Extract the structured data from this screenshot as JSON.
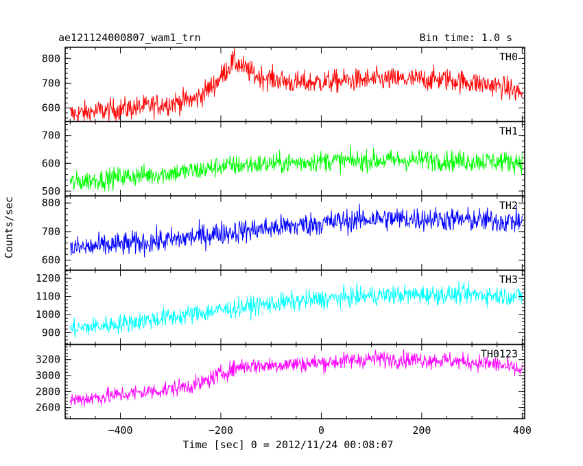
{
  "header": {
    "title": "ae121124000807_wam1_trn",
    "bin_time": "Bin time: 1.0 s"
  },
  "chart_data": {
    "type": "line",
    "xlabel": "Time [sec] 0 = 2012/11/24 00:08:07",
    "ylabel": "Counts/sec",
    "xlim": [
      -510,
      405
    ],
    "x_ticks": [
      -400,
      -200,
      0,
      200,
      400
    ],
    "x_tick_labels": [
      "−400",
      "−200",
      "0",
      "200",
      "400"
    ],
    "x_range": [
      -500,
      400
    ],
    "panels": [
      {
        "name": "TH0",
        "color": "#ff0000",
        "ylim": [
          545,
          845
        ],
        "y_ticks": [
          600,
          700,
          800
        ],
        "y_tick_labels": [
          "600",
          "700",
          "800"
        ],
        "trend": [
          [
            -500,
            575
          ],
          [
            -350,
            605
          ],
          [
            -250,
            635
          ],
          [
            -210,
            700
          ],
          [
            -175,
            790
          ],
          [
            -130,
            730
          ],
          [
            -50,
            700
          ],
          [
            0,
            705
          ],
          [
            100,
            715
          ],
          [
            250,
            715
          ],
          [
            350,
            690
          ],
          [
            400,
            660
          ]
        ],
        "noise": 42
      },
      {
        "name": "TH1",
        "color": "#00ff00",
        "ylim": [
          483,
          750
        ],
        "y_ticks": [
          500,
          600,
          700
        ],
        "y_tick_labels": [
          "500",
          "600",
          "700"
        ],
        "trend": [
          [
            -500,
            530
          ],
          [
            -400,
            550
          ],
          [
            -300,
            565
          ],
          [
            -240,
            575
          ],
          [
            -200,
            590
          ],
          [
            -100,
            598
          ],
          [
            0,
            608
          ],
          [
            100,
            610
          ],
          [
            200,
            612
          ],
          [
            300,
            608
          ],
          [
            400,
            605
          ]
        ],
        "noise": 34
      },
      {
        "name": "TH2",
        "color": "#0000ff",
        "ylim": [
          565,
          825
        ],
        "y_ticks": [
          600,
          700,
          800
        ],
        "y_tick_labels": [
          "600",
          "700",
          "800"
        ],
        "trend": [
          [
            -500,
            640
          ],
          [
            -400,
            655
          ],
          [
            -300,
            670
          ],
          [
            -200,
            695
          ],
          [
            -100,
            712
          ],
          [
            0,
            730
          ],
          [
            100,
            745
          ],
          [
            200,
            745
          ],
          [
            300,
            740
          ],
          [
            400,
            735
          ]
        ],
        "noise": 38
      },
      {
        "name": "TH3",
        "color": "#00ffff",
        "ylim": [
          835,
          1245
        ],
        "y_ticks": [
          900,
          1000,
          1100,
          1200
        ],
        "y_tick_labels": [
          "900",
          "1000",
          "1100",
          "1200"
        ],
        "trend": [
          [
            -500,
            920
          ],
          [
            -400,
            950
          ],
          [
            -300,
            985
          ],
          [
            -200,
            1025
          ],
          [
            -100,
            1060
          ],
          [
            0,
            1085
          ],
          [
            100,
            1105
          ],
          [
            200,
            1110
          ],
          [
            300,
            1110
          ],
          [
            400,
            1100
          ]
        ],
        "noise": 48
      },
      {
        "name": "TH0123",
        "color": "#ff00ff",
        "ylim": [
          2460,
          3390
        ],
        "y_ticks": [
          2600,
          2800,
          3000,
          3200
        ],
        "y_tick_labels": [
          "2600",
          "2800",
          "3000",
          "3200"
        ],
        "trend": [
          [
            -500,
            2690
          ],
          [
            -400,
            2760
          ],
          [
            -300,
            2830
          ],
          [
            -240,
            2900
          ],
          [
            -200,
            3020
          ],
          [
            -160,
            3120
          ],
          [
            -100,
            3130
          ],
          [
            0,
            3160
          ],
          [
            100,
            3210
          ],
          [
            250,
            3190
          ],
          [
            350,
            3140
          ],
          [
            400,
            3060
          ]
        ],
        "noise": 95
      }
    ]
  }
}
